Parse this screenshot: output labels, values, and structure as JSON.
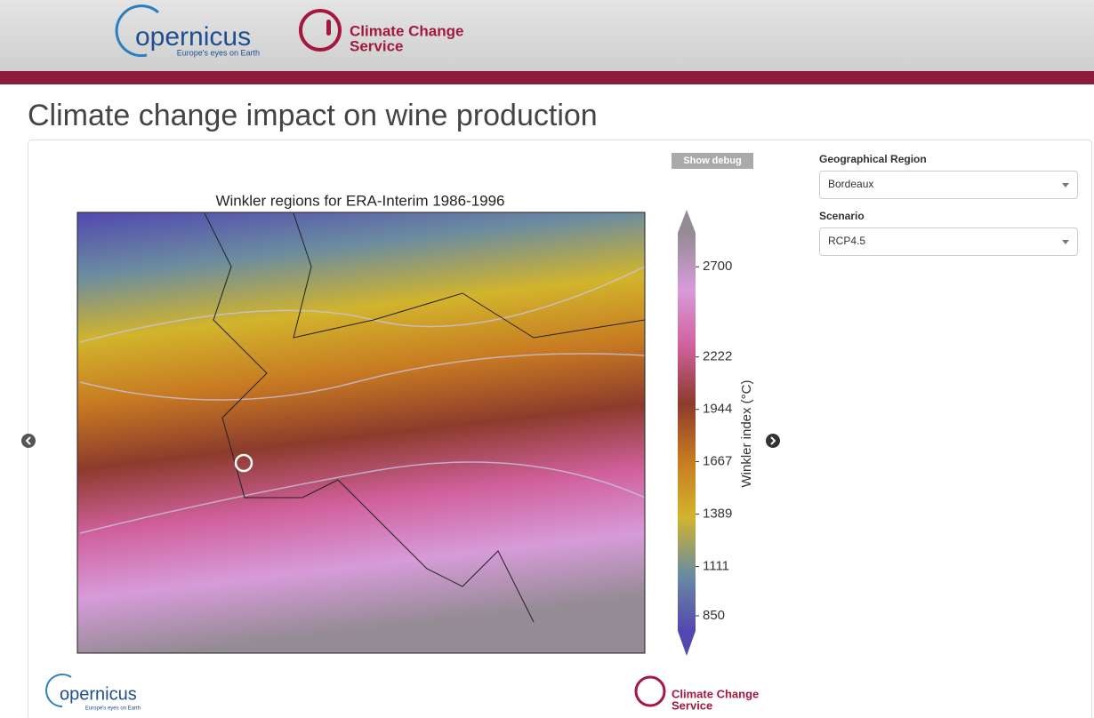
{
  "header": {
    "copernicus": {
      "wordmark": "opernicus",
      "tagline": "Europe's eyes on Earth"
    },
    "c3s": {
      "line1": "Climate Change",
      "line2": "Service"
    }
  },
  "page_title": "Climate change impact on wine production",
  "debug_button": "Show debug",
  "chart_data": {
    "type": "colormap",
    "title": "Winkler regions for ERA-Interim 1986-1996",
    "colorbar_label": "Winkler index (°C)",
    "clim": [
      770,
      2880
    ],
    "colorbar_ticks": [
      850,
      1111,
      1389,
      1667,
      1944,
      2222,
      2700
    ],
    "colors": [
      "#5248b0",
      "#6b8ca0",
      "#d2b42c",
      "#c77a22",
      "#8c3b2c",
      "#d0609c",
      "#d79bd9",
      "#958b95"
    ]
  },
  "controls": [
    {
      "label": "Geographical Region",
      "value": "Bordeaux"
    },
    {
      "label": "Scenario",
      "value": "RCP4.5"
    }
  ],
  "footer": {
    "copernicus": {
      "wordmark": "opernicus",
      "tagline": "Europe's eyes on Earth"
    },
    "c3s": {
      "line1": "Climate Change",
      "line2": "Service"
    }
  }
}
